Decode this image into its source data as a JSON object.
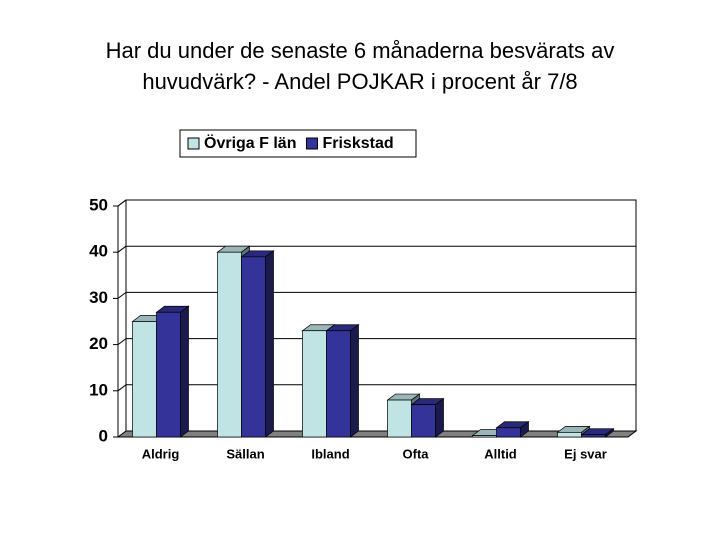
{
  "chart_data": {
    "type": "bar3d",
    "title": [
      "Har du under de senaste 6 månaderna besvärats av",
      "huvudvärk? - Andel POJKAR i procent år 7/8"
    ],
    "categories": [
      "Aldrig",
      "Sällan",
      "Ibland",
      "Ofta",
      "Alltid",
      "Ej svar"
    ],
    "series": [
      {
        "name": "Övriga F län",
        "color": "#c0e4e4",
        "values": [
          25,
          40,
          23,
          8,
          0.3,
          1
        ]
      },
      {
        "name": "Friskstad",
        "color": "#333399",
        "values": [
          27,
          39,
          23,
          7,
          2,
          0.5
        ]
      }
    ],
    "ylim": [
      0,
      50
    ],
    "yticks": [
      0,
      10,
      20,
      30,
      40,
      50
    ],
    "grid": true,
    "legend": "top"
  }
}
